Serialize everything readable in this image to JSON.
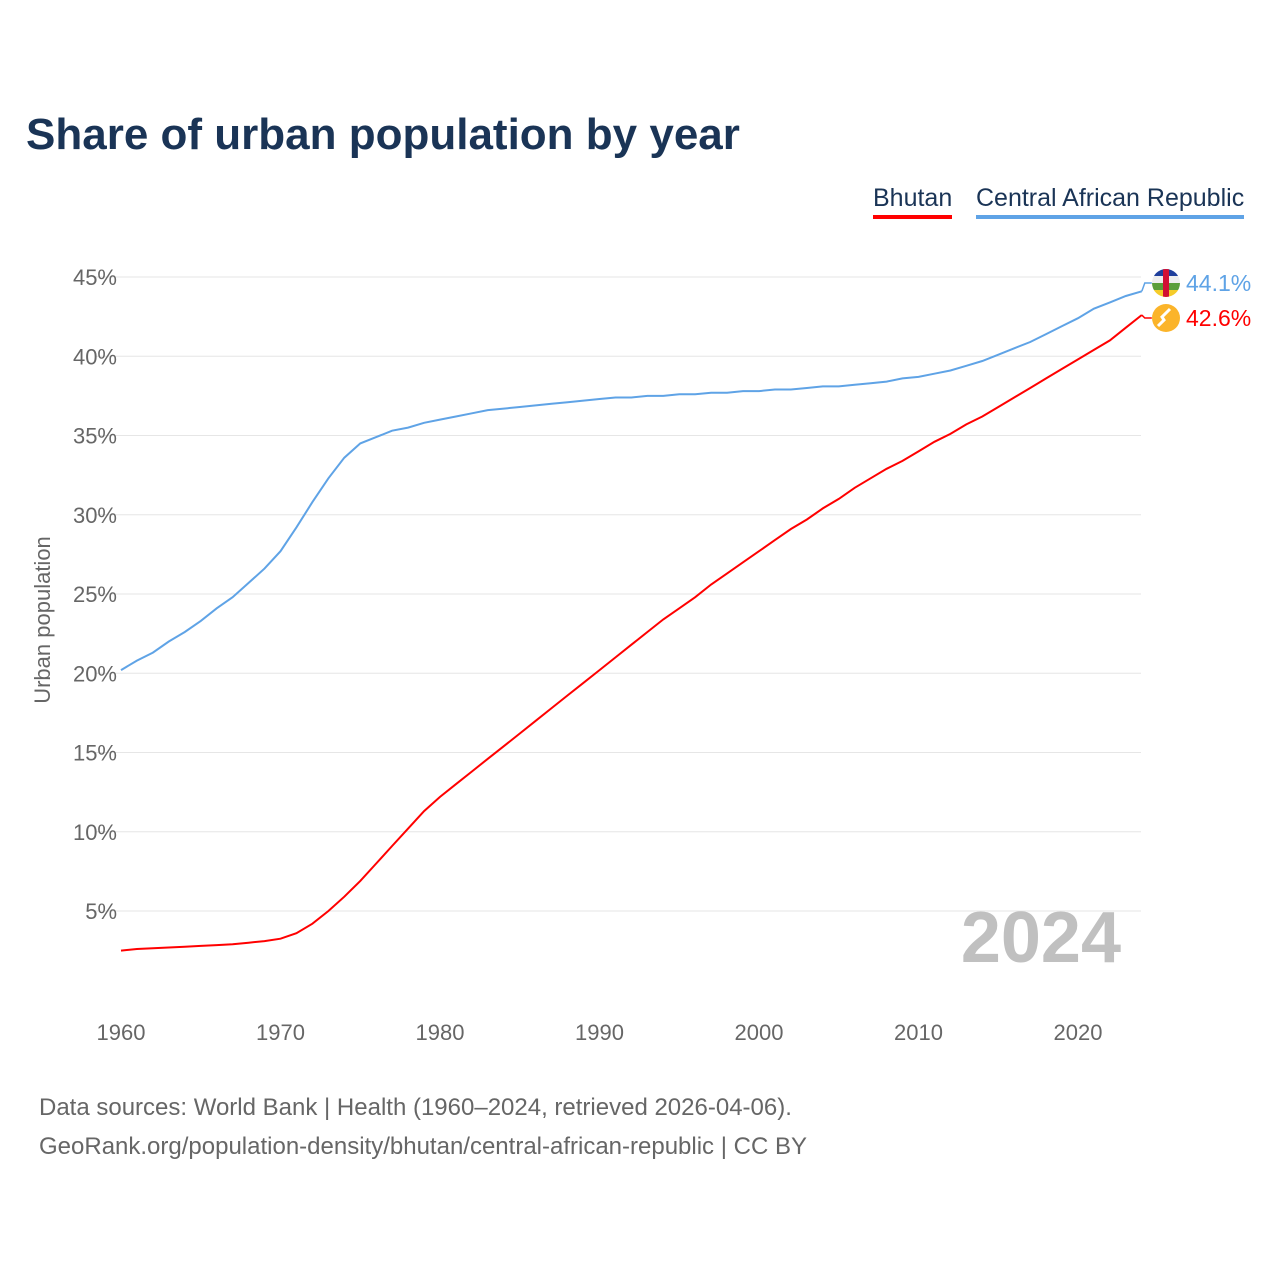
{
  "chart_data": {
    "type": "line",
    "title": "Share of urban population by year",
    "ylabel": "Urban population",
    "xlabel": "",
    "ylim": [
      0,
      45
    ],
    "xlim": [
      1960,
      2024
    ],
    "yticks": [
      "5%",
      "10%",
      "15%",
      "20%",
      "25%",
      "30%",
      "35%",
      "40%",
      "45%"
    ],
    "xticks": [
      "1960",
      "1970",
      "1980",
      "1990",
      "2000",
      "2010",
      "2020"
    ],
    "year_label": "2024",
    "legend": [
      "Bhutan",
      "Central African Republic"
    ],
    "series": [
      {
        "name": "Bhutan",
        "color": "#ff0000",
        "end_label": "42.6%",
        "values": [
          2.5,
          2.6,
          2.65,
          2.7,
          2.75,
          2.8,
          2.85,
          2.9,
          3.0,
          3.1,
          3.25,
          3.6,
          4.2,
          5.0,
          5.9,
          6.9,
          8.0,
          9.1,
          10.2,
          11.3,
          12.2,
          13.0,
          13.8,
          14.6,
          15.4,
          16.2,
          17.0,
          17.8,
          18.6,
          19.4,
          20.2,
          21.0,
          21.8,
          22.6,
          23.4,
          24.1,
          24.8,
          25.6,
          26.3,
          27.0,
          27.7,
          28.4,
          29.1,
          29.7,
          30.4,
          31.0,
          31.7,
          32.3,
          32.9,
          33.4,
          34.0,
          34.6,
          35.1,
          35.7,
          36.2,
          36.8,
          37.4,
          38.0,
          38.6,
          39.2,
          39.8,
          40.4,
          41.0,
          41.8,
          42.6
        ]
      },
      {
        "name": "Central African Republic",
        "color": "#5fa3e6",
        "end_label": "44.1%",
        "values": [
          20.2,
          20.8,
          21.3,
          22.0,
          22.6,
          23.3,
          24.1,
          24.8,
          25.7,
          26.6,
          27.7,
          29.2,
          30.8,
          32.3,
          33.6,
          34.5,
          34.9,
          35.3,
          35.5,
          35.8,
          36.0,
          36.2,
          36.4,
          36.6,
          36.7,
          36.8,
          36.9,
          37.0,
          37.1,
          37.2,
          37.3,
          37.4,
          37.4,
          37.5,
          37.5,
          37.6,
          37.6,
          37.7,
          37.7,
          37.8,
          37.8,
          37.9,
          37.9,
          38.0,
          38.1,
          38.1,
          38.2,
          38.3,
          38.4,
          38.6,
          38.7,
          38.9,
          39.1,
          39.4,
          39.7,
          40.1,
          40.5,
          40.9,
          41.4,
          41.9,
          42.4,
          43.0,
          43.4,
          43.8,
          44.1
        ]
      }
    ]
  },
  "source": {
    "line1": "Data sources: World Bank | Health (1960–2024, retrieved 2026-04-06).",
    "line2": "GeoRank.org/population-density/bhutan/central-african-republic | CC BY"
  }
}
